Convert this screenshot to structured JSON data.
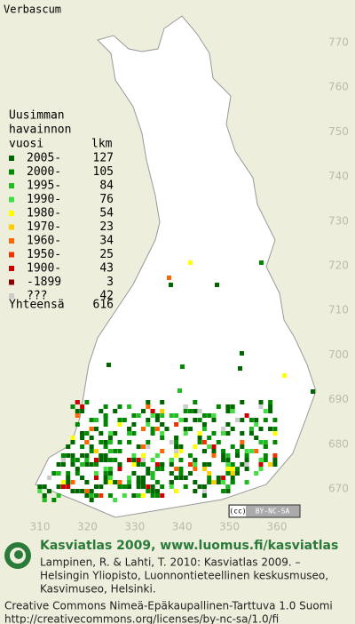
{
  "title": "Verbascum",
  "legend": {
    "header": [
      "Uusimman",
      "havainnon",
      "vuosi"
    ],
    "count_header": "lkm",
    "items": [
      {
        "label": "2005-",
        "count": 127,
        "color": "#006600"
      },
      {
        "label": "2000-",
        "count": 105,
        "color": "#008800"
      },
      {
        "label": "1995-",
        "count": 84,
        "color": "#22bb22"
      },
      {
        "label": "1990-",
        "count": 76,
        "color": "#44dd44"
      },
      {
        "label": "1980-",
        "count": 54,
        "color": "#ffff00"
      },
      {
        "label": "1970-",
        "count": 23,
        "color": "#ffcc00"
      },
      {
        "label": "1960-",
        "count": 34,
        "color": "#ff6600"
      },
      {
        "label": "1950-",
        "count": 25,
        "color": "#ee3300"
      },
      {
        "label": "1900-",
        "count": 43,
        "color": "#cc0000"
      },
      {
        "label": "-1899",
        "count": 3,
        "color": "#880000"
      },
      {
        "label": "???",
        "count": 42,
        "color": "#cccccc"
      }
    ],
    "total_label": "Yhteensä",
    "total": 616
  },
  "grid": {
    "north": [
      770,
      760,
      750,
      740,
      730,
      720,
      710,
      700,
      690,
      680,
      670
    ],
    "east": [
      310,
      320,
      330,
      340,
      350,
      360
    ]
  },
  "license_badge": "BY-NC-SA",
  "footer": {
    "heading": "Kasviatlas 2009, www.luomus.fi/kasviatlas",
    "citation": [
      "Lampinen, R. & Lahti, T. 2010: Kasviatlas 2009. –",
      "Helsingin Yliopisto, Luonnontieteellinen keskusmuseo,",
      "Kasvimuseo, Helsinki."
    ],
    "license": [
      "Creative Commons Nimeä-Epäkaupallinen-Tarttuva 1.0 Suomi",
      "http://creativecommons.org/licenses/by-nc-sa/1.0/fi"
    ]
  }
}
